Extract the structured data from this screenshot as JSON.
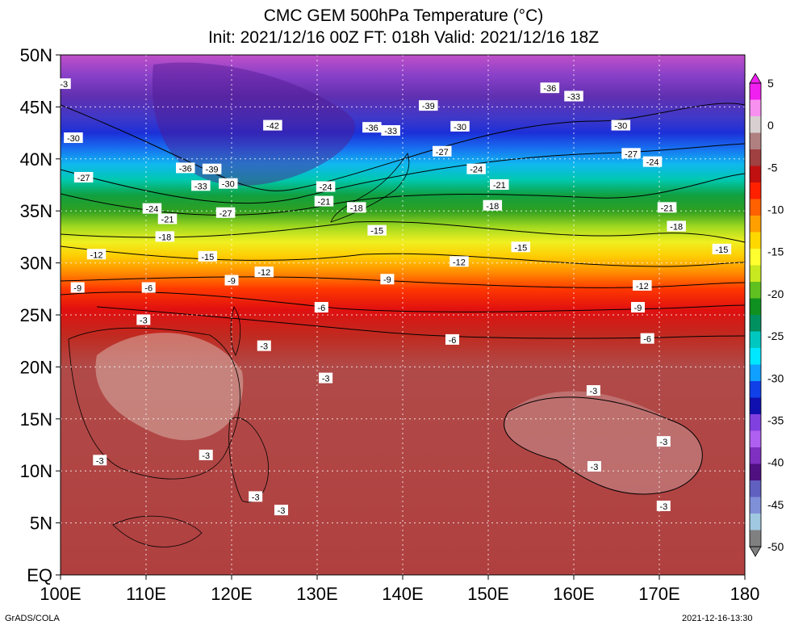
{
  "title": "CMC GEM 500hPa Temperature (°C)",
  "subtitle": "Init: 2021/12/16 00Z  FT: 018h  Valid: 2021/12/16 18Z",
  "map": {
    "lat_labels": [
      "50N",
      "45N",
      "40N",
      "35N",
      "30N",
      "25N",
      "20N",
      "15N",
      "10N",
      "5N",
      "EQ"
    ],
    "lon_labels": [
      "100E",
      "110E",
      "120E",
      "130E",
      "140E",
      "150E",
      "160E",
      "170E",
      "180"
    ],
    "lat_range": [
      0,
      50
    ],
    "lon_range": [
      100,
      180
    ],
    "grid": true
  },
  "colorbar": {
    "labels": [
      "5",
      "0",
      "-5",
      "-10",
      "-15",
      "-20",
      "-25",
      "-30",
      "-35",
      "-40",
      "-45",
      "-50"
    ],
    "colors": [
      "#f020f0",
      "#f890f0",
      "#d8d0d0",
      "#b08080",
      "#a04040",
      "#c01010",
      "#ff2000",
      "#ff6000",
      "#ffa000",
      "#ffd800",
      "#ffff30",
      "#c8e820",
      "#60c020",
      "#109020",
      "#009060",
      "#00c8c0",
      "#00e8ff",
      "#10a0ff",
      "#1040e8",
      "#1010b0",
      "#8040e0",
      "#b060f0",
      "#8030c0",
      "#501080",
      "#6060c0",
      "#8090d8",
      "#a0c8e0",
      "#808080"
    ]
  },
  "contours": [
    {
      "label": "-3",
      "lat": 47.2,
      "lon": 100.4
    },
    {
      "label": "-36",
      "lat": 46.8,
      "lon": 157.2
    },
    {
      "label": "-33",
      "lat": 46.0,
      "lon": 160.0
    },
    {
      "label": "-39",
      "lat": 45.1,
      "lon": 143.0
    },
    {
      "label": "-42",
      "lat": 43.2,
      "lon": 124.8
    },
    {
      "label": "-36",
      "lat": 43.0,
      "lon": 136.4
    },
    {
      "label": "-33",
      "lat": 42.7,
      "lon": 138.6
    },
    {
      "label": "-30",
      "lat": 43.1,
      "lon": 146.7
    },
    {
      "label": "-30",
      "lat": 43.2,
      "lon": 165.5
    },
    {
      "label": "-30",
      "lat": 42.0,
      "lon": 101.5
    },
    {
      "label": "-27",
      "lat": 40.7,
      "lon": 144.6
    },
    {
      "label": "-27",
      "lat": 40.5,
      "lon": 166.7
    },
    {
      "label": "-24",
      "lat": 39.7,
      "lon": 169.2
    },
    {
      "label": "-36",
      "lat": 39.1,
      "lon": 114.6
    },
    {
      "label": "-39",
      "lat": 39.0,
      "lon": 117.7
    },
    {
      "label": "-24",
      "lat": 39.0,
      "lon": 148.6
    },
    {
      "label": "-27",
      "lat": 38.2,
      "lon": 102.7
    },
    {
      "label": "-30",
      "lat": 37.6,
      "lon": 119.6
    },
    {
      "label": "-33",
      "lat": 37.4,
      "lon": 116.4
    },
    {
      "label": "-24",
      "lat": 37.3,
      "lon": 131.0
    },
    {
      "label": "-21",
      "lat": 37.5,
      "lon": 151.3
    },
    {
      "label": "-21",
      "lat": 35.9,
      "lon": 130.8
    },
    {
      "label": "-18",
      "lat": 35.3,
      "lon": 134.6
    },
    {
      "label": "-18",
      "lat": 35.5,
      "lon": 150.5
    },
    {
      "label": "-21",
      "lat": 35.3,
      "lon": 170.9
    },
    {
      "label": "-24",
      "lat": 35.2,
      "lon": 110.7
    },
    {
      "label": "-27",
      "lat": 34.8,
      "lon": 119.3
    },
    {
      "label": "-21",
      "lat": 34.2,
      "lon": 112.5
    },
    {
      "label": "-18",
      "lat": 33.5,
      "lon": 172.0
    },
    {
      "label": "-15",
      "lat": 33.1,
      "lon": 137.0
    },
    {
      "label": "-18",
      "lat": 32.5,
      "lon": 112.2
    },
    {
      "label": "-15",
      "lat": 31.5,
      "lon": 153.8
    },
    {
      "label": "-15",
      "lat": 31.3,
      "lon": 177.3
    },
    {
      "label": "-12",
      "lat": 30.8,
      "lon": 104.2
    },
    {
      "label": "-15",
      "lat": 30.6,
      "lon": 117.2
    },
    {
      "label": "-12",
      "lat": 30.1,
      "lon": 146.6
    },
    {
      "label": "-12",
      "lat": 29.1,
      "lon": 123.8
    },
    {
      "label": "-9",
      "lat": 28.3,
      "lon": 120.0
    },
    {
      "label": "-9",
      "lat": 28.4,
      "lon": 138.2
    },
    {
      "label": "-12",
      "lat": 27.8,
      "lon": 168.0
    },
    {
      "label": "-9",
      "lat": 27.6,
      "lon": 102.0
    },
    {
      "label": "-6",
      "lat": 27.6,
      "lon": 110.3
    },
    {
      "label": "-6",
      "lat": 25.7,
      "lon": 130.5
    },
    {
      "label": "-9",
      "lat": 25.7,
      "lon": 167.5
    },
    {
      "label": "-3",
      "lat": 24.5,
      "lon": 109.7
    },
    {
      "label": "-6",
      "lat": 22.6,
      "lon": 145.8
    },
    {
      "label": "-6",
      "lat": 22.7,
      "lon": 168.6
    },
    {
      "label": "-3",
      "lat": 22.0,
      "lon": 123.8
    },
    {
      "label": "-3",
      "lat": 18.9,
      "lon": 131.0
    },
    {
      "label": "-3",
      "lat": 17.7,
      "lon": 162.3
    },
    {
      "label": "-3",
      "lat": 12.8,
      "lon": 170.5
    },
    {
      "label": "-3",
      "lat": 11.5,
      "lon": 117.0
    },
    {
      "label": "-3",
      "lat": 11.0,
      "lon": 104.6
    },
    {
      "label": "-3",
      "lat": 10.4,
      "lon": 162.4
    },
    {
      "label": "-3",
      "lat": 7.5,
      "lon": 122.8
    },
    {
      "label": "-3",
      "lat": 6.6,
      "lon": 170.5
    },
    {
      "label": "-3",
      "lat": 6.2,
      "lon": 125.8
    }
  ],
  "footer": {
    "left": "GrADS/COLA",
    "right": "2021-12-16-13:30"
  }
}
